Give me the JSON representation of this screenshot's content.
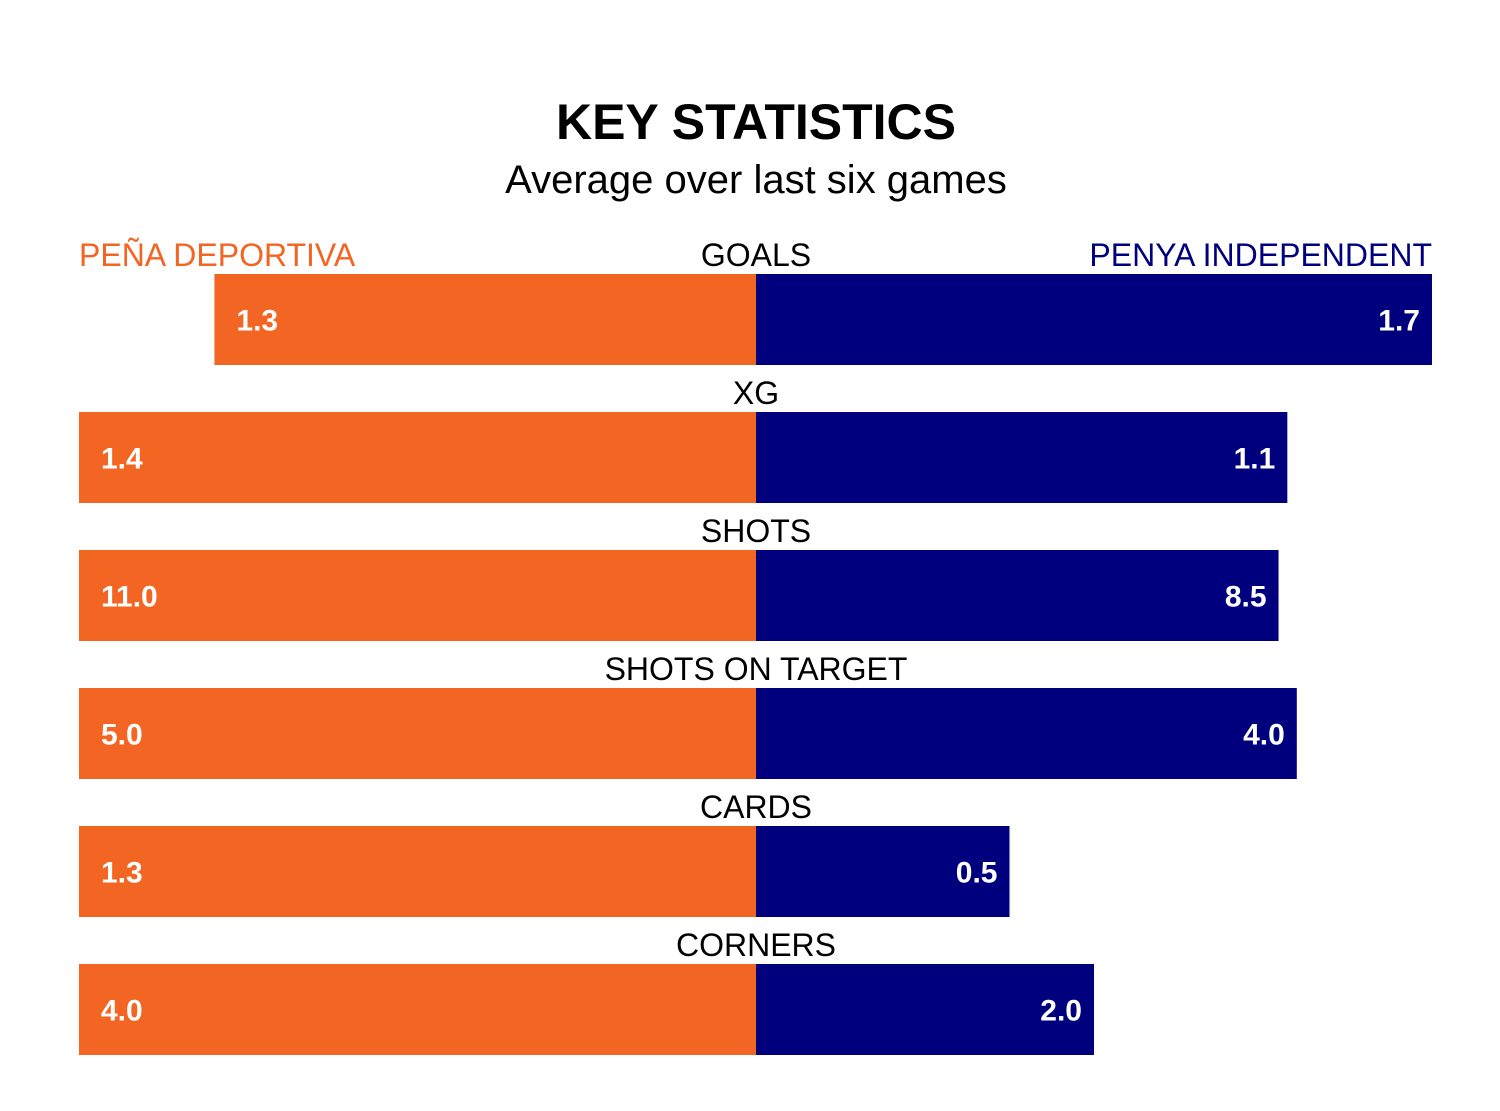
{
  "chart_data": {
    "type": "bar",
    "title": "KEY STATISTICS",
    "subtitle": "Average over last six games",
    "categories": [
      "GOALS",
      "XG",
      "SHOTS",
      "SHOTS ON TARGET",
      "CARDS",
      "CORNERS"
    ],
    "series": [
      {
        "name": "PEÑA DEPORTIVA",
        "color": "#f26522",
        "values": [
          1.3,
          1.4,
          11.0,
          5.0,
          1.3,
          4.0
        ],
        "labels": [
          "1.3",
          "1.4",
          "11.0",
          "5.0",
          "1.3",
          "4.0"
        ]
      },
      {
        "name": "PENYA INDEPENDENT",
        "color": "#00007f",
        "values": [
          1.7,
          1.1,
          8.5,
          4.0,
          0.5,
          2.0
        ],
        "labels": [
          "1.7",
          "1.1",
          "8.5",
          "4.0",
          "0.5",
          "2.0"
        ]
      }
    ],
    "bar_share": {
      "left": [
        0.8,
        1.0,
        1.0,
        1.0,
        1.0,
        1.0
      ],
      "right": [
        1.0,
        0.786,
        0.773,
        0.8,
        0.375,
        0.5
      ]
    },
    "label_color_inside": "#ffffff",
    "label_color_outside": "#000000"
  }
}
